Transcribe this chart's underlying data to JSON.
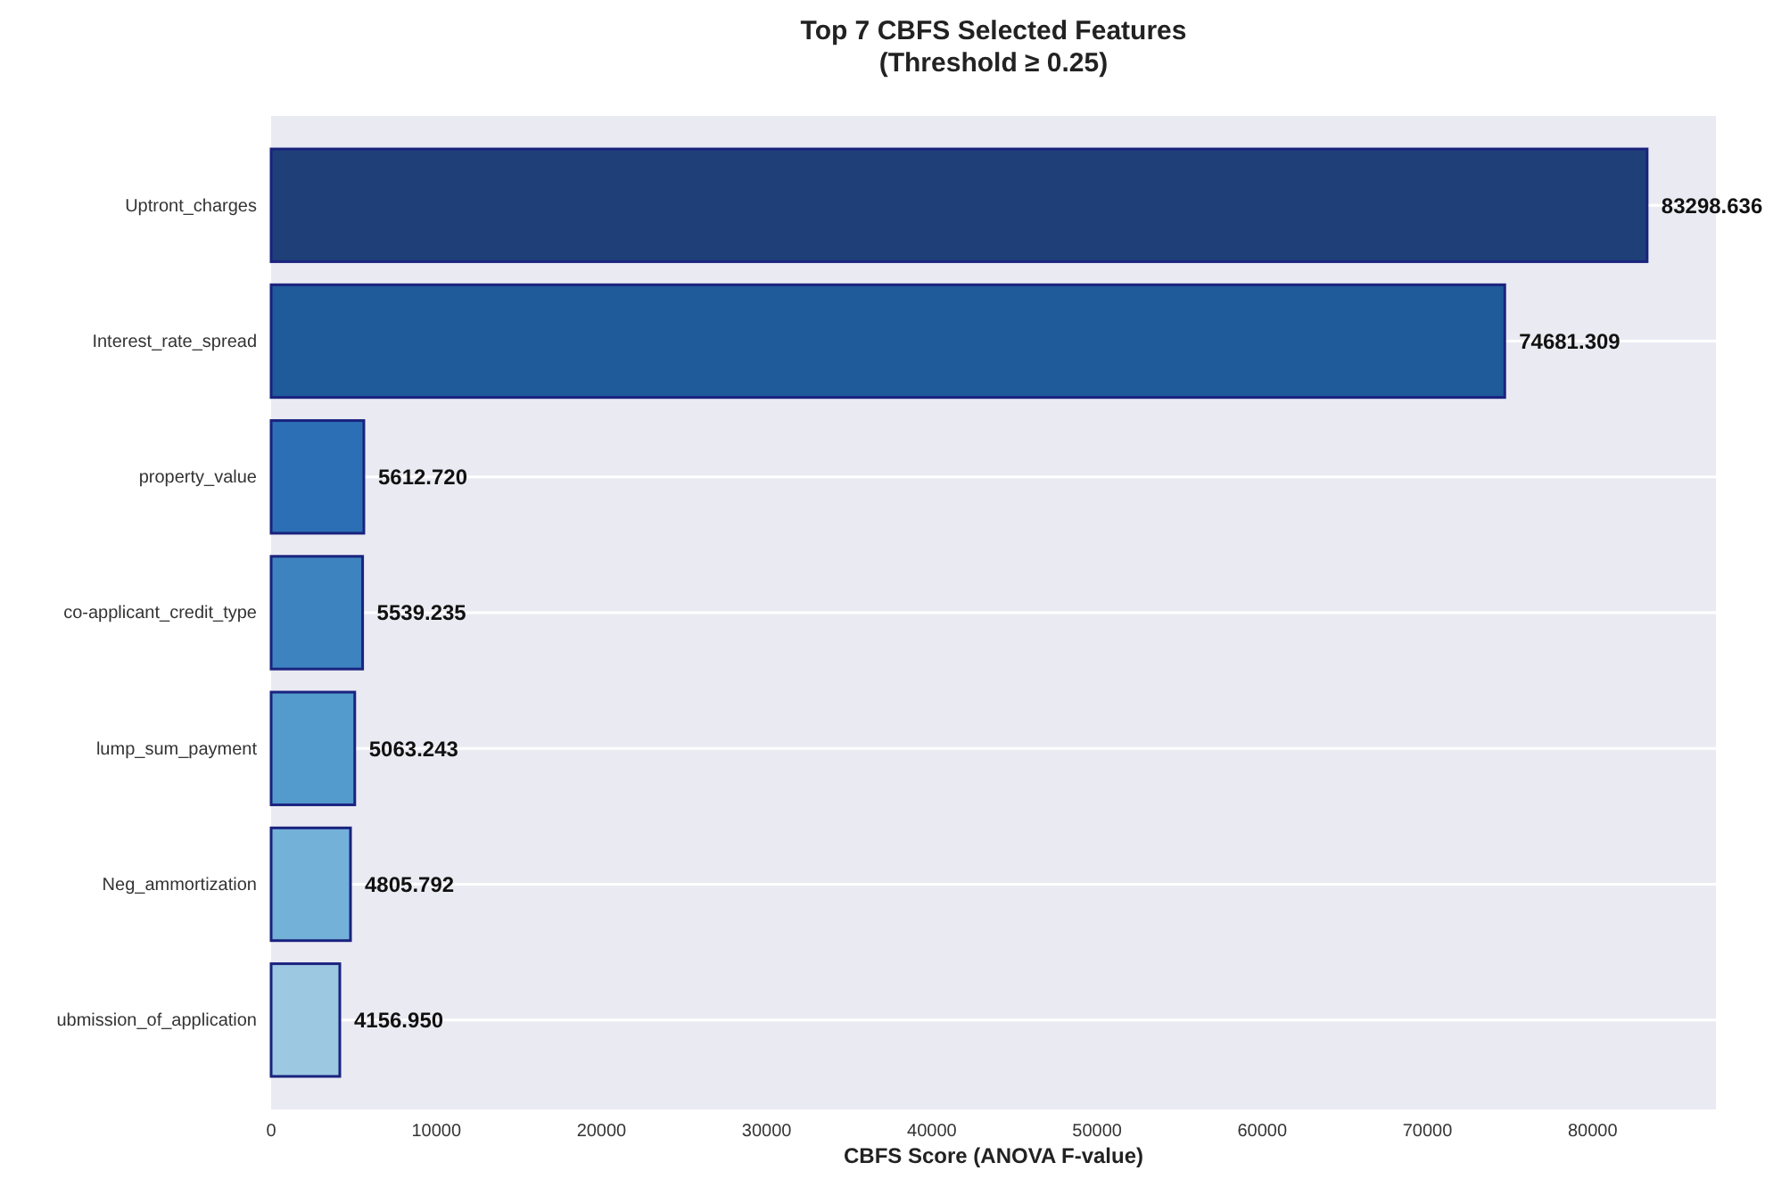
{
  "chart_data": {
    "type": "bar",
    "orientation": "horizontal",
    "title": "Top 7 CBFS Selected Features",
    "subtitle": "(Threshold ≥ 0.25)",
    "xlabel": "CBFS Score (ANOVA F-value)",
    "categories": [
      "Uptront_charges",
      "Interest_rate_spread",
      "property_value",
      "co-applicant_credit_type",
      "lump_sum_payment",
      "Neg_ammortization",
      "ubmission_of_application"
    ],
    "values": [
      83298.636,
      74681.309,
      5612.72,
      5539.235,
      5063.243,
      4805.792,
      4156.95
    ],
    "colors": [
      "#1f3f78",
      "#1f5a9a",
      "#2c6fb4",
      "#3d83c0",
      "#539bcc",
      "#74b1d9",
      "#9dc8e2"
    ],
    "value_labels": [
      "83298.636",
      "74681.309",
      "5612.720",
      "5539.235",
      "5063.243",
      "4805.792",
      "4156.950"
    ],
    "xlim": [
      0,
      87464
    ],
    "xticks": [
      0,
      10000,
      20000,
      30000,
      40000,
      50000,
      60000,
      70000,
      80000
    ],
    "grid": "y"
  }
}
